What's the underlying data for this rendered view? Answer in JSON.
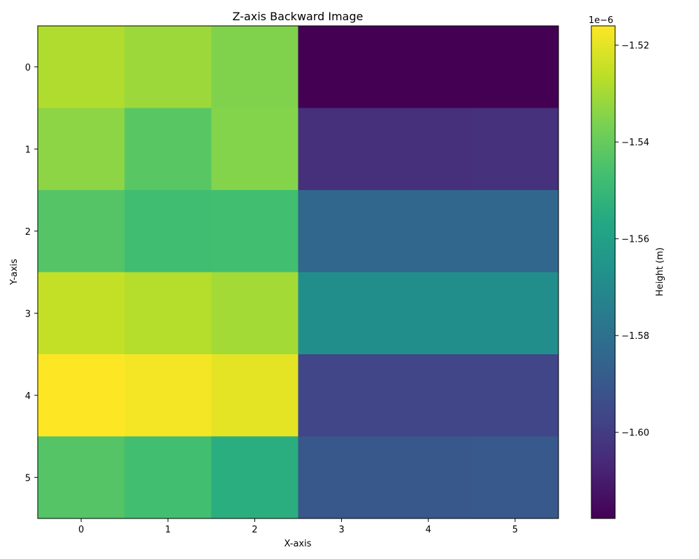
{
  "chart_data": {
    "type": "heatmap",
    "title": "Z-axis Backward Image",
    "xlabel": "X-axis",
    "ylabel": "Y-axis",
    "x_ticks": [
      "0",
      "1",
      "2",
      "3",
      "4",
      "5"
    ],
    "y_ticks": [
      "0",
      "1",
      "2",
      "3",
      "4",
      "5"
    ],
    "values": [
      [
        -1.5283,
        -1.531,
        -1.5355,
        -1.6178,
        -1.6178,
        -1.6178
      ],
      [
        -1.5335,
        -1.5425,
        -1.535,
        -1.604,
        -1.604,
        -1.6035
      ],
      [
        -1.5435,
        -1.5475,
        -1.547,
        -1.584,
        -1.584,
        -1.584
      ],
      [
        -1.525,
        -1.5275,
        -1.53,
        -1.568,
        -1.568,
        -1.568
      ],
      [
        -1.516,
        -1.5175,
        -1.52,
        -1.5965,
        -1.5965,
        -1.5965
      ],
      [
        -1.5435,
        -1.547,
        -1.554,
        -1.59,
        -1.59,
        -1.5895
      ]
    ],
    "colorbar": {
      "label": "Height (m)",
      "exponent_label": "1e−6",
      "min": -1.6178,
      "max": -1.516,
      "ticks": [
        -1.52,
        -1.54,
        -1.56,
        -1.58,
        -1.6
      ],
      "tick_labels": [
        "−1.52",
        "−1.54",
        "−1.56",
        "−1.58",
        "−1.60"
      ],
      "colormap": "viridis"
    }
  }
}
